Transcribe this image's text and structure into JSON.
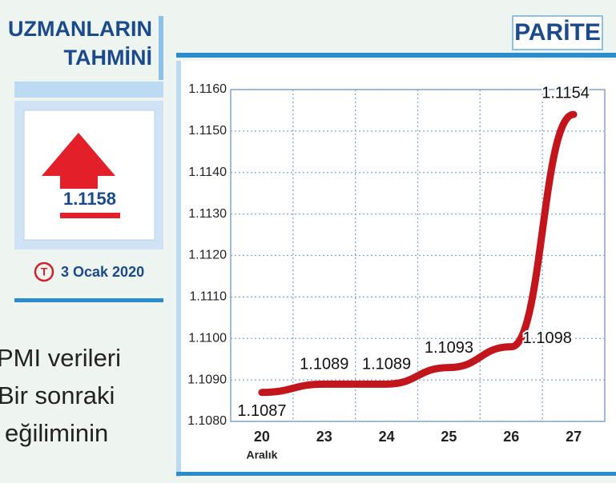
{
  "sidebar": {
    "title_1": "UZMANLARIN",
    "title_2": "TAHMİNİ",
    "forecast": "1.1158",
    "logo": "T",
    "date": "3 Ocak 2020"
  },
  "article": {
    "lines": [
      "PMI verileri",
      "Bir sonraki",
      "eğiliminin"
    ]
  },
  "chart_data": {
    "type": "line",
    "title": "PARİTE",
    "categories": [
      "20",
      "23",
      "24",
      "25",
      "26",
      "27"
    ],
    "x_sublabel": "Aralık",
    "values": [
      1.1087,
      1.1089,
      1.1089,
      1.1093,
      1.1098,
      1.1154
    ],
    "color": "#c3161c",
    "ylim": [
      1.108,
      1.116
    ],
    "yticks": [
      {
        "value": 1.108,
        "label": "1.1080"
      },
      {
        "value": 1.109,
        "label": "1.1090"
      },
      {
        "value": 1.11,
        "label": "1.1100"
      },
      {
        "value": 1.111,
        "label": "1.1110"
      },
      {
        "value": 1.112,
        "label": "1.1120"
      },
      {
        "value": 1.113,
        "label": "1.1130"
      },
      {
        "value": 1.114,
        "label": "1.1140"
      },
      {
        "value": 1.115,
        "label": "1.1150"
      },
      {
        "value": 1.116,
        "label": "1.1160"
      }
    ],
    "grid": true
  }
}
